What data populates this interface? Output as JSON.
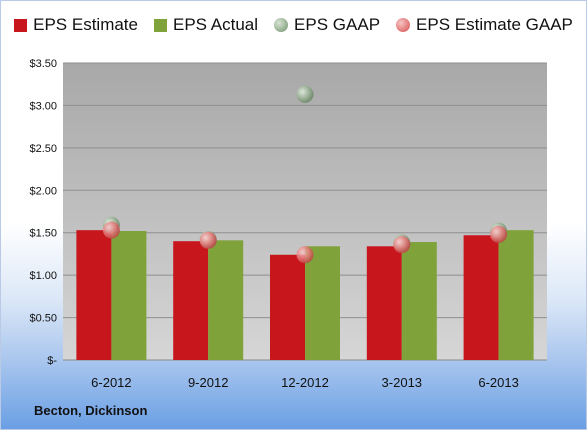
{
  "chart_data": {
    "type": "bar",
    "categories": [
      "6-2012",
      "9-2012",
      "12-2012",
      "3-2013",
      "6-2013"
    ],
    "series": [
      {
        "name": "EPS Estimate",
        "kind": "bar",
        "color": "#c8161d",
        "values": [
          1.53,
          1.4,
          1.24,
          1.34,
          1.47
        ]
      },
      {
        "name": "EPS Actual",
        "kind": "bar",
        "color": "#7fa23a",
        "values": [
          1.52,
          1.41,
          1.34,
          1.39,
          1.53
        ]
      },
      {
        "name": "EPS GAAP",
        "kind": "scatter",
        "color": "#8fa98b",
        "values": [
          1.59,
          1.42,
          3.13,
          1.38,
          1.52
        ]
      },
      {
        "name": "EPS Estimate GAAP",
        "kind": "scatter",
        "color": "#e07070",
        "values": [
          1.53,
          1.41,
          1.24,
          1.36,
          1.48
        ]
      }
    ],
    "ylim": [
      0,
      3.5
    ],
    "yticks": [
      0,
      0.5,
      1.0,
      1.5,
      2.0,
      2.5,
      3.0,
      3.5
    ],
    "ytick_labels": [
      "$-",
      "$0.50",
      "$1.00",
      "$1.50",
      "$2.00",
      "$2.50",
      "$3.00",
      "$3.50"
    ],
    "grid": true,
    "legend_position": "top"
  },
  "legend": {
    "items": [
      "EPS Estimate",
      "EPS Actual",
      "EPS GAAP",
      "EPS Estimate GAAP"
    ]
  },
  "footer": {
    "company": "Becton, Dickinson"
  }
}
